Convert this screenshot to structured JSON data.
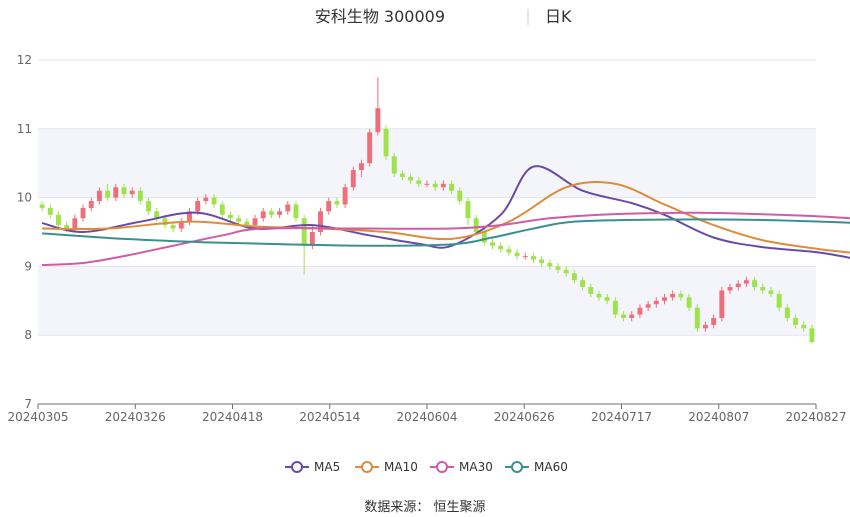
{
  "chart_data": {
    "type": "candlestick",
    "title": "安科生物 300009",
    "period": "日K",
    "xlabel": "",
    "ylabel": "",
    "ylim": [
      7,
      12
    ],
    "yticks": [
      7,
      8,
      9,
      10,
      11,
      12
    ],
    "xticks": [
      "20240305",
      "20240326",
      "20240418",
      "20240514",
      "20240604",
      "20240626",
      "20240717",
      "20240807",
      "20240827"
    ],
    "up_color": "#ee6f7a",
    "down_color": "#9ee34a",
    "band_color": "#f4f5fb",
    "legend_position": "bottom",
    "series": [
      {
        "name": "MA5",
        "color": "#6a4aa8",
        "values": [
          [
            0,
            9.63
          ],
          [
            5,
            9.5
          ],
          [
            12,
            9.65
          ],
          [
            19,
            9.78
          ],
          [
            26,
            9.55
          ],
          [
            33,
            9.6
          ],
          [
            40,
            9.45
          ],
          [
            46,
            9.33
          ],
          [
            50,
            9.3
          ],
          [
            56,
            9.75
          ],
          [
            60,
            10.45
          ],
          [
            66,
            10.1
          ],
          [
            72,
            9.92
          ],
          [
            76,
            9.75
          ],
          [
            82,
            9.42
          ],
          [
            88,
            9.28
          ],
          [
            95,
            9.2
          ],
          [
            102,
            9.05
          ],
          [
            110,
            8.9
          ],
          [
            118,
            8.75
          ],
          [
            126,
            8.62
          ],
          [
            134,
            8.5
          ],
          [
            142,
            8.5
          ],
          [
            148,
            8.5
          ],
          [
            155,
            8.15
          ],
          [
            160,
            8.35
          ],
          [
            166,
            8.6
          ],
          [
            172,
            8.68
          ],
          [
            178,
            8.55
          ],
          [
            184,
            8.3
          ],
          [
            188,
            8.1
          ]
        ]
      },
      {
        "name": "MA10",
        "color": "#dc8c3c",
        "values": [
          [
            0,
            9.55
          ],
          [
            8,
            9.55
          ],
          [
            18,
            9.65
          ],
          [
            26,
            9.58
          ],
          [
            34,
            9.55
          ],
          [
            42,
            9.5
          ],
          [
            50,
            9.4
          ],
          [
            57,
            9.65
          ],
          [
            64,
            10.15
          ],
          [
            70,
            10.2
          ],
          [
            76,
            9.9
          ],
          [
            82,
            9.6
          ],
          [
            88,
            9.38
          ],
          [
            95,
            9.25
          ],
          [
            102,
            9.15
          ],
          [
            110,
            8.95
          ],
          [
            118,
            8.78
          ],
          [
            126,
            8.62
          ],
          [
            134,
            8.52
          ],
          [
            142,
            8.52
          ],
          [
            150,
            8.45
          ],
          [
            155,
            8.35
          ],
          [
            162,
            8.32
          ],
          [
            168,
            8.5
          ],
          [
            174,
            8.63
          ],
          [
            180,
            8.6
          ],
          [
            188,
            8.3
          ]
        ]
      },
      {
        "name": "MA30",
        "color": "#d05ba6",
        "values": [
          [
            0,
            9.02
          ],
          [
            5,
            9.05
          ],
          [
            10,
            9.15
          ],
          [
            16,
            9.3
          ],
          [
            22,
            9.45
          ],
          [
            27,
            9.55
          ],
          [
            40,
            9.55
          ],
          [
            50,
            9.55
          ],
          [
            56,
            9.6
          ],
          [
            62,
            9.7
          ],
          [
            70,
            9.76
          ],
          [
            80,
            9.78
          ],
          [
            90,
            9.75
          ],
          [
            96,
            9.72
          ],
          [
            102,
            9.65
          ],
          [
            110,
            9.4
          ],
          [
            118,
            9.15
          ],
          [
            126,
            8.95
          ],
          [
            134,
            8.8
          ],
          [
            142,
            8.7
          ],
          [
            150,
            8.6
          ],
          [
            156,
            8.5
          ],
          [
            164,
            8.45
          ],
          [
            172,
            8.47
          ],
          [
            180,
            8.45
          ],
          [
            188,
            8.42
          ]
        ]
      },
      {
        "name": "MA60",
        "color": "#3a9090",
        "values": [
          [
            0,
            9.48
          ],
          [
            10,
            9.4
          ],
          [
            20,
            9.35
          ],
          [
            30,
            9.32
          ],
          [
            40,
            9.3
          ],
          [
            50,
            9.32
          ],
          [
            55,
            9.42
          ],
          [
            60,
            9.55
          ],
          [
            65,
            9.65
          ],
          [
            75,
            9.68
          ],
          [
            85,
            9.68
          ],
          [
            95,
            9.65
          ],
          [
            105,
            9.6
          ],
          [
            115,
            9.52
          ],
          [
            125,
            9.42
          ],
          [
            135,
            9.32
          ],
          [
            145,
            9.22
          ],
          [
            155,
            9.05
          ],
          [
            162,
            8.85
          ],
          [
            172,
            8.75
          ],
          [
            182,
            8.65
          ],
          [
            188,
            8.58
          ]
        ]
      }
    ],
    "candles": [
      [
        9.9,
        9.85,
        9.95,
        9.8
      ],
      [
        9.85,
        9.75,
        9.9,
        9.7
      ],
      [
        9.75,
        9.6,
        9.8,
        9.55
      ],
      [
        9.6,
        9.55,
        9.65,
        9.5
      ],
      [
        9.55,
        9.7,
        9.75,
        9.5
      ],
      [
        9.7,
        9.85,
        9.9,
        9.65
      ],
      [
        9.85,
        9.95,
        10.0,
        9.8
      ],
      [
        9.95,
        10.1,
        10.15,
        9.9
      ],
      [
        10.1,
        10.0,
        10.2,
        9.95
      ],
      [
        10.0,
        10.15,
        10.2,
        9.95
      ],
      [
        10.15,
        10.05,
        10.2,
        10.0
      ],
      [
        10.05,
        10.1,
        10.15,
        10.0
      ],
      [
        10.1,
        9.95,
        10.15,
        9.9
      ],
      [
        9.95,
        9.8,
        10.0,
        9.75
      ],
      [
        9.8,
        9.7,
        9.85,
        9.65
      ],
      [
        9.7,
        9.6,
        9.75,
        9.55
      ],
      [
        9.6,
        9.55,
        9.65,
        9.5
      ],
      [
        9.55,
        9.65,
        9.7,
        9.5
      ],
      [
        9.65,
        9.8,
        9.85,
        9.6
      ],
      [
        9.8,
        9.95,
        10.0,
        9.75
      ],
      [
        9.95,
        10.0,
        10.05,
        9.9
      ],
      [
        10.0,
        9.9,
        10.05,
        9.85
      ],
      [
        9.9,
        9.75,
        9.95,
        9.7
      ],
      [
        9.75,
        9.7,
        9.8,
        9.65
      ],
      [
        9.7,
        9.65,
        9.75,
        9.6
      ],
      [
        9.65,
        9.6,
        9.7,
        9.55
      ],
      [
        9.6,
        9.7,
        9.75,
        9.55
      ],
      [
        9.7,
        9.8,
        9.85,
        9.65
      ],
      [
        9.8,
        9.75,
        9.85,
        9.7
      ],
      [
        9.75,
        9.8,
        9.85,
        9.7
      ],
      [
        9.8,
        9.9,
        9.95,
        9.75
      ],
      [
        9.9,
        9.7,
        9.95,
        9.65
      ],
      [
        9.7,
        9.3,
        9.75,
        8.88
      ],
      [
        9.3,
        9.5,
        9.6,
        9.25
      ],
      [
        9.5,
        9.8,
        9.85,
        9.45
      ],
      [
        9.8,
        9.95,
        10.0,
        9.75
      ],
      [
        9.95,
        9.9,
        10.0,
        9.85
      ],
      [
        9.9,
        10.15,
        10.2,
        9.85
      ],
      [
        10.15,
        10.4,
        10.45,
        10.1
      ],
      [
        10.4,
        10.5,
        10.55,
        10.3
      ],
      [
        10.5,
        10.95,
        11.0,
        10.45
      ],
      [
        10.95,
        11.3,
        11.75,
        10.9
      ],
      [
        11.0,
        10.6,
        11.05,
        10.55
      ],
      [
        10.6,
        10.35,
        10.65,
        10.3
      ],
      [
        10.35,
        10.3,
        10.4,
        10.25
      ],
      [
        10.3,
        10.25,
        10.35,
        10.2
      ],
      [
        10.25,
        10.2,
        10.3,
        10.15
      ],
      [
        10.2,
        10.2,
        10.25,
        10.15
      ],
      [
        10.2,
        10.15,
        10.25,
        10.1
      ],
      [
        10.15,
        10.2,
        10.25,
        10.1
      ],
      [
        10.2,
        10.1,
        10.25,
        10.05
      ],
      [
        10.1,
        9.95,
        10.15,
        9.9
      ],
      [
        9.95,
        9.7,
        10.0,
        9.6
      ],
      [
        9.7,
        9.5,
        9.75,
        9.45
      ],
      [
        9.5,
        9.35,
        9.55,
        9.3
      ],
      [
        9.35,
        9.3,
        9.4,
        9.25
      ],
      [
        9.3,
        9.25,
        9.35,
        9.2
      ],
      [
        9.25,
        9.2,
        9.3,
        9.15
      ],
      [
        9.2,
        9.15,
        9.25,
        9.1
      ],
      [
        9.15,
        9.15,
        9.2,
        9.1
      ],
      [
        9.15,
        9.1,
        9.2,
        9.05
      ],
      [
        9.1,
        9.05,
        9.15,
        9.0
      ],
      [
        9.05,
        9.0,
        9.1,
        8.95
      ],
      [
        9.0,
        8.95,
        9.05,
        8.9
      ],
      [
        8.95,
        8.9,
        9.0,
        8.85
      ],
      [
        8.9,
        8.8,
        8.95,
        8.75
      ],
      [
        8.8,
        8.7,
        8.85,
        8.65
      ],
      [
        8.7,
        8.6,
        8.75,
        8.55
      ],
      [
        8.6,
        8.55,
        8.65,
        8.5
      ],
      [
        8.55,
        8.5,
        8.6,
        8.45
      ],
      [
        8.5,
        8.3,
        8.55,
        8.25
      ],
      [
        8.3,
        8.25,
        8.35,
        8.2
      ],
      [
        8.25,
        8.3,
        8.35,
        8.2
      ],
      [
        8.3,
        8.4,
        8.45,
        8.25
      ],
      [
        8.4,
        8.45,
        8.5,
        8.35
      ],
      [
        8.45,
        8.5,
        8.55,
        8.4
      ],
      [
        8.5,
        8.55,
        8.6,
        8.45
      ],
      [
        8.55,
        8.6,
        8.65,
        8.5
      ],
      [
        8.6,
        8.55,
        8.65,
        8.5
      ],
      [
        8.55,
        8.4,
        8.6,
        8.35
      ],
      [
        8.4,
        8.1,
        8.45,
        8.05
      ],
      [
        8.1,
        8.15,
        8.2,
        8.05
      ],
      [
        8.15,
        8.25,
        8.3,
        8.1
      ],
      [
        8.25,
        8.65,
        8.7,
        8.2
      ],
      [
        8.65,
        8.7,
        8.75,
        8.6
      ],
      [
        8.7,
        8.75,
        8.8,
        8.65
      ],
      [
        8.75,
        8.8,
        8.85,
        8.7
      ],
      [
        8.8,
        8.7,
        8.85,
        8.65
      ],
      [
        8.7,
        8.65,
        8.75,
        8.6
      ],
      [
        8.65,
        8.6,
        8.7,
        8.55
      ],
      [
        8.6,
        8.4,
        8.65,
        8.35
      ],
      [
        8.4,
        8.25,
        8.45,
        8.2
      ],
      [
        8.25,
        8.15,
        8.3,
        8.1
      ],
      [
        8.15,
        8.1,
        8.2,
        8.05
      ],
      [
        8.1,
        7.9,
        8.15,
        7.88
      ]
    ]
  },
  "legend": {
    "ma5": "MA5",
    "ma10": "MA10",
    "ma30": "MA30",
    "ma60": "MA60"
  },
  "source": "数据来源： 恒生聚源"
}
